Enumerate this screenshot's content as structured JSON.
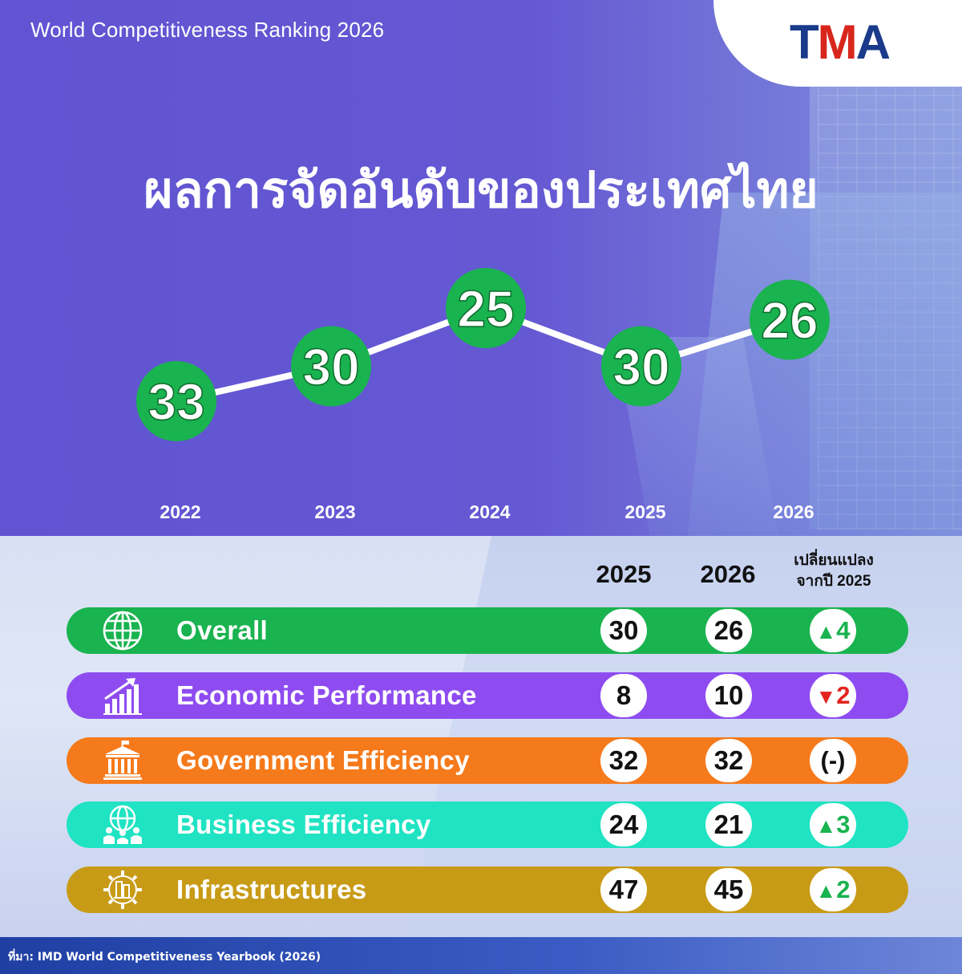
{
  "header": {
    "title": "World Competitiveness Ranking 2026"
  },
  "logo": {
    "text_a": "T",
    "text_b": "M",
    "text_c": "A"
  },
  "main_title": "ผลการจัดอันดับของประเทศไทย",
  "chart_data": {
    "type": "line",
    "title": "ผลการจัดอันดับของประเทศไทย",
    "x": [
      "2022",
      "2023",
      "2024",
      "2025",
      "2026"
    ],
    "series": [
      {
        "values": [
          33,
          30,
          25,
          30,
          26
        ]
      }
    ],
    "marker_color": "#19b34f",
    "line_color": "#ffffff",
    "y_inverted": true
  },
  "table": {
    "col_2025": "2025",
    "col_2026": "2026",
    "col_change_line1": "เปลี่ยนแปลง",
    "col_change_line2": "จากปี 2025",
    "rows": [
      {
        "label": "Overall",
        "icon": "globe-icon",
        "color": "#19b34f",
        "v2025": "30",
        "v2026": "26",
        "change": "4",
        "direction": "up"
      },
      {
        "label": "Economic Performance",
        "icon": "growth-chart-icon",
        "color": "#8e4cf0",
        "v2025": "8",
        "v2026": "10",
        "change": "2",
        "direction": "down"
      },
      {
        "label": "Government Efficiency",
        "icon": "government-building-icon",
        "color": "#f57a1c",
        "v2025": "32",
        "v2026": "32",
        "change": "(-)",
        "direction": "none"
      },
      {
        "label": "Business Efficiency",
        "icon": "business-globe-icon",
        "color": "#1fe3c2",
        "v2025": "24",
        "v2026": "21",
        "change": "3",
        "direction": "up"
      },
      {
        "label": "Infrastructures",
        "icon": "infrastructure-gear-icon",
        "color": "#c89b17",
        "v2025": "47",
        "v2026": "45",
        "change": "2",
        "direction": "up"
      }
    ]
  },
  "footer": {
    "source": "ที่มา: IMD World Competitiveness Yearbook (2026)"
  }
}
